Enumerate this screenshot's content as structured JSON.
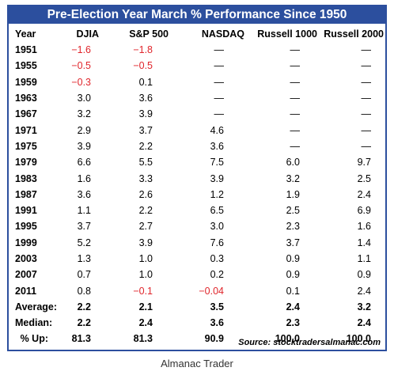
{
  "colors": {
    "title_bg": "#2c4f9e",
    "negative": "#e0252b"
  },
  "chart_data": {
    "type": "table",
    "title": "Pre-Election Year March % Performance Since 1950",
    "columns": [
      "Year",
      "DJIA",
      "S&P 500",
      "NASDAQ",
      "Russell 1000",
      "Russell 2000"
    ],
    "rows": [
      [
        "1951",
        "−1.6",
        "−1.8",
        "—",
        "—",
        "—"
      ],
      [
        "1955",
        "−0.5",
        "−0.5",
        "—",
        "—",
        "—"
      ],
      [
        "1959",
        "−0.3",
        "0.1",
        "—",
        "—",
        "—"
      ],
      [
        "1963",
        "3.0",
        "3.6",
        "—",
        "—",
        "—"
      ],
      [
        "1967",
        "3.2",
        "3.9",
        "—",
        "—",
        "—"
      ],
      [
        "1971",
        "2.9",
        "3.7",
        "4.6",
        "—",
        "—"
      ],
      [
        "1975",
        "3.9",
        "2.2",
        "3.6",
        "—",
        "—"
      ],
      [
        "1979",
        "6.6",
        "5.5",
        "7.5",
        "6.0",
        "9.7"
      ],
      [
        "1983",
        "1.6",
        "3.3",
        "3.9",
        "3.2",
        "2.5"
      ],
      [
        "1987",
        "3.6",
        "2.6",
        "1.2",
        "1.9",
        "2.4"
      ],
      [
        "1991",
        "1.1",
        "2.2",
        "6.5",
        "2.5",
        "6.9"
      ],
      [
        "1995",
        "3.7",
        "2.7",
        "3.0",
        "2.3",
        "1.6"
      ],
      [
        "1999",
        "5.2",
        "3.9",
        "7.6",
        "3.7",
        "1.4"
      ],
      [
        "2003",
        "1.3",
        "1.0",
        "0.3",
        "0.9",
        "1.1"
      ],
      [
        "2007",
        "0.7",
        "1.0",
        "0.2",
        "0.9",
        "0.9"
      ],
      [
        "2011",
        "0.8",
        "−0.1",
        "−0.04",
        "0.1",
        "2.4"
      ]
    ],
    "summary": [
      [
        "Average:",
        "2.2",
        "2.1",
        "3.5",
        "2.4",
        "3.2"
      ],
      [
        "Median:",
        "2.2",
        "2.4",
        "3.6",
        "2.3",
        "2.4"
      ],
      [
        "% Up:",
        "81.3",
        "81.3",
        "90.9",
        "100.0",
        "100.0"
      ]
    ],
    "source": "Source: stocktradersalmanac.com"
  },
  "caption": "Almanac Trader"
}
